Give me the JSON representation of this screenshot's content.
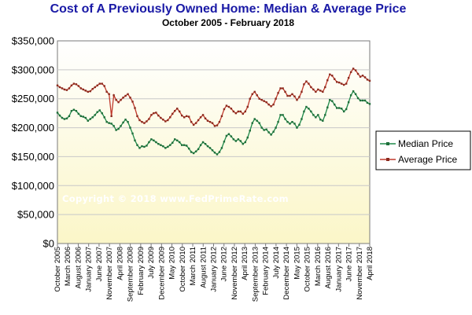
{
  "chart_data": {
    "type": "line",
    "title": "Cost of A Previously Owned Home: Median & Average Price",
    "subtitle": "October 2005  -  February 2018",
    "watermark": "Copyright © 2018 www.FedPrimeRate.com",
    "xlabel": "",
    "ylabel": "",
    "ylim": [
      0,
      350000
    ],
    "yticks": [
      "$0",
      "$50,000",
      "$100,000",
      "$150,000",
      "$200,000",
      "$250,000",
      "$300,000",
      "$350,000"
    ],
    "xticks": [
      "October 2005",
      "March 2006",
      "August 2006",
      "January 2007",
      "June 2007",
      "November 2007",
      "April 2008",
      "September 2008",
      "February 2009",
      "July 2009",
      "December 2009",
      "May 2010",
      "October 2010",
      "March 2011",
      "August 2011",
      "January 2012",
      "June 2012",
      "November 2012",
      "April 2013",
      "September 2013",
      "February 2014",
      "July 2014",
      "December 2014",
      "May 2015",
      "October 2015",
      "March 2016",
      "August 2016",
      "January 2017",
      "June 2017",
      "November 2017",
      "April 2018"
    ],
    "grid": true,
    "legend_position": "right",
    "series": [
      {
        "name": "Median Price",
        "color": "#1e8a4a",
        "marker_color": "#1e6e3a",
        "values": [
          226000,
          221000,
          217000,
          215000,
          216000,
          220000,
          229000,
          231000,
          229000,
          224000,
          220000,
          219000,
          217000,
          212000,
          215000,
          218000,
          222000,
          227000,
          230000,
          225000,
          218000,
          210000,
          208000,
          207000,
          203000,
          196000,
          198000,
          203000,
          209000,
          214000,
          210000,
          200000,
          190000,
          178000,
          170000,
          165000,
          168000,
          167000,
          169000,
          175000,
          180000,
          178000,
          175000,
          172000,
          170000,
          168000,
          165000,
          167000,
          170000,
          174000,
          180000,
          178000,
          175000,
          170000,
          170000,
          169000,
          164000,
          158000,
          156000,
          159000,
          163000,
          170000,
          175000,
          172000,
          168000,
          165000,
          161000,
          157000,
          154000,
          158000,
          165000,
          176000,
          186000,
          189000,
          185000,
          180000,
          177000,
          180000,
          177000,
          172000,
          175000,
          183000,
          195000,
          208000,
          215000,
          212000,
          208000,
          200000,
          196000,
          197000,
          192000,
          188000,
          193000,
          200000,
          210000,
          222000,
          222000,
          215000,
          210000,
          207000,
          210000,
          207000,
          200000,
          205000,
          215000,
          228000,
          236000,
          233000,
          228000,
          222000,
          218000,
          222000,
          214000,
          212000,
          222000,
          235000,
          248000,
          246000,
          240000,
          234000,
          234000,
          233000,
          228000,
          232000,
          244000,
          256000,
          263000,
          258000,
          251000,
          247000,
          247000,
          247000,
          243000,
          241000
        ]
      },
      {
        "name": "Average Price",
        "color": "#c0392b",
        "marker_color": "#8b2a1e",
        "values": [
          273000,
          270000,
          268000,
          266000,
          265000,
          268000,
          273000,
          276000,
          275000,
          272000,
          268000,
          266000,
          264000,
          262000,
          263000,
          267000,
          270000,
          273000,
          276000,
          276000,
          272000,
          262000,
          258000,
          220000,
          256000,
          248000,
          244000,
          248000,
          252000,
          255000,
          258000,
          252000,
          245000,
          234000,
          220000,
          213000,
          210000,
          208000,
          211000,
          215000,
          222000,
          225000,
          226000,
          221000,
          217000,
          214000,
          211000,
          213000,
          218000,
          224000,
          229000,
          233000,
          228000,
          221000,
          218000,
          220000,
          219000,
          210000,
          205000,
          208000,
          213000,
          218000,
          222000,
          216000,
          212000,
          210000,
          208000,
          203000,
          204000,
          210000,
          220000,
          232000,
          238000,
          236000,
          233000,
          228000,
          225000,
          228000,
          228000,
          224000,
          228000,
          236000,
          250000,
          258000,
          262000,
          256000,
          250000,
          248000,
          246000,
          244000,
          240000,
          237000,
          240000,
          250000,
          260000,
          268000,
          268000,
          262000,
          255000,
          255000,
          258000,
          254000,
          248000,
          253000,
          262000,
          275000,
          280000,
          276000,
          270000,
          266000,
          262000,
          266000,
          264000,
          262000,
          270000,
          282000,
          292000,
          290000,
          284000,
          279000,
          278000,
          276000,
          274000,
          276000,
          286000,
          296000,
          302000,
          299000,
          293000,
          288000,
          290000,
          287000,
          283000,
          281000
        ]
      }
    ]
  }
}
